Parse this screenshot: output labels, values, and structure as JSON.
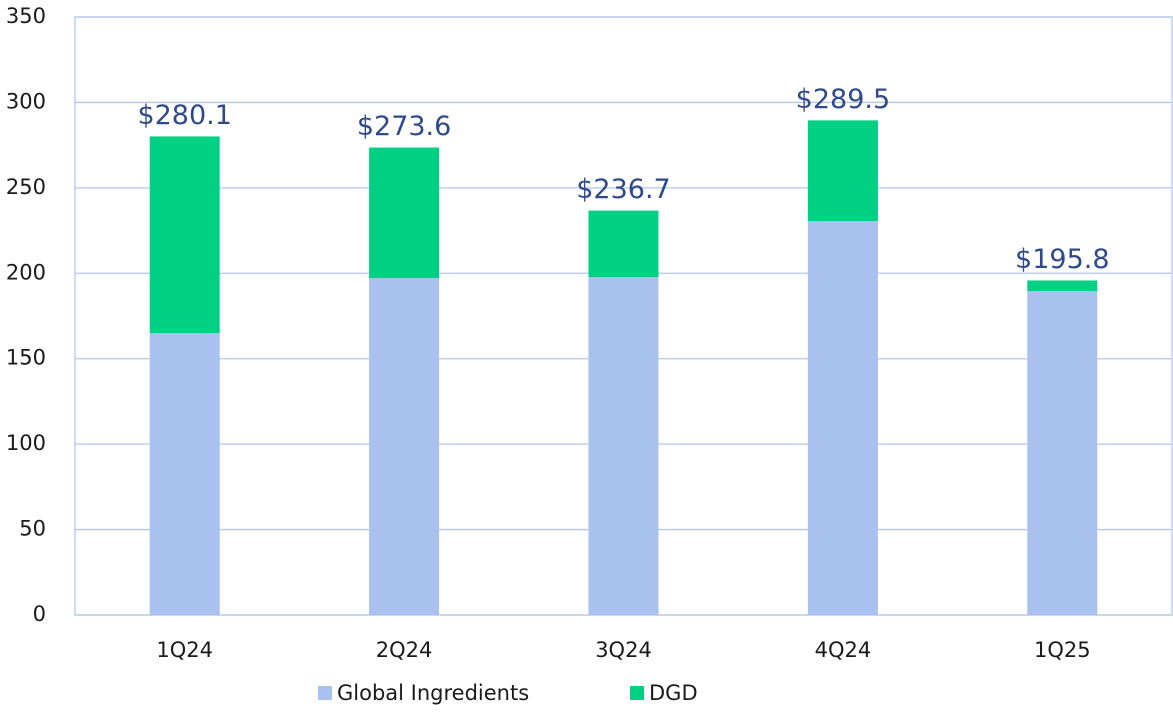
{
  "chart_data": {
    "type": "stacked_bar",
    "categories": [
      "1Q24",
      "2Q24",
      "3Q24",
      "4Q24",
      "1Q25"
    ],
    "series": [
      {
        "name": "Global Ingredients",
        "color": "#a9c1ef",
        "values": [
          165.0,
          197.2,
          197.8,
          230.6,
          189.6
        ]
      },
      {
        "name": "DGD",
        "color": "#00d084",
        "values": [
          115.1,
          76.4,
          38.9,
          58.9,
          6.2
        ]
      }
    ],
    "totals": [
      280.1,
      273.6,
      236.7,
      289.5,
      195.8
    ],
    "total_labels": [
      "$280.1",
      "$273.6",
      "$236.7",
      "$289.5",
      "$195.8"
    ],
    "ylim": [
      0,
      350
    ],
    "yticks": [
      0,
      50,
      100,
      150,
      200,
      250,
      300,
      350
    ],
    "grid": true,
    "legend": "bottom"
  }
}
